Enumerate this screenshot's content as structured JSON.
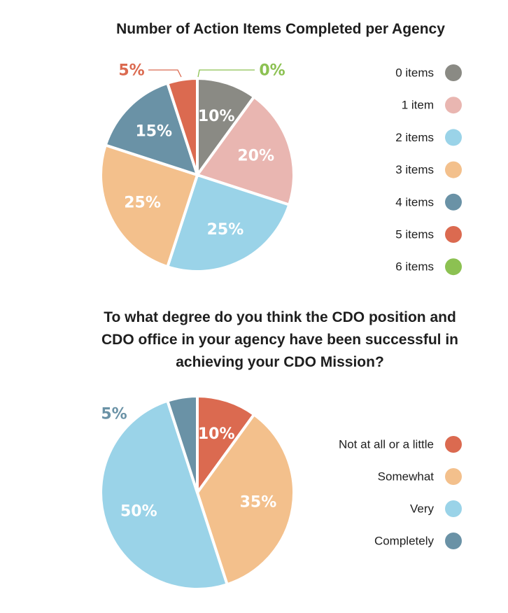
{
  "chart_data": [
    {
      "type": "pie",
      "title": "Number of Action Items Completed per Agency",
      "legend_position": "right",
      "slices": [
        {
          "label": "0 items",
          "value": 10,
          "display": "10%",
          "color": "#8a8a84",
          "label_style": "inside"
        },
        {
          "label": "1 item",
          "value": 20,
          "display": "20%",
          "color": "#e9b6b1",
          "label_style": "inside"
        },
        {
          "label": "2 items",
          "value": 25,
          "display": "25%",
          "color": "#9ad3e8",
          "label_style": "inside"
        },
        {
          "label": "3 items",
          "value": 25,
          "display": "25%",
          "color": "#f3c08c",
          "label_style": "inside"
        },
        {
          "label": "4 items",
          "value": 15,
          "display": "15%",
          "color": "#6a92a6",
          "label_style": "inside"
        },
        {
          "label": "5  items",
          "value": 5,
          "display": "5%",
          "color": "#db6a50",
          "label_style": "callout"
        },
        {
          "label": "6  items",
          "value": 0,
          "display": "0%",
          "color": "#8cc152",
          "label_style": "callout"
        }
      ]
    },
    {
      "type": "pie",
      "title_lines": [
        "To what degree do you think the CDO position and",
        "CDO office in your agency have been successful in",
        "achieving your CDO Mission?"
      ],
      "legend_position": "right",
      "slices": [
        {
          "label": "Not at all or a little",
          "value": 10,
          "display": "10%",
          "color": "#db6a50",
          "label_style": "inside"
        },
        {
          "label": "Somewhat",
          "value": 35,
          "display": "35%",
          "color": "#f3c08c",
          "label_style": "inside"
        },
        {
          "label": "Very",
          "value": 50,
          "display": "50%",
          "color": "#9ad3e8",
          "label_style": "inside"
        },
        {
          "label": "Completely",
          "value": 5,
          "display": "5%",
          "color": "#6a92a6",
          "label_style": "outside"
        }
      ]
    }
  ]
}
